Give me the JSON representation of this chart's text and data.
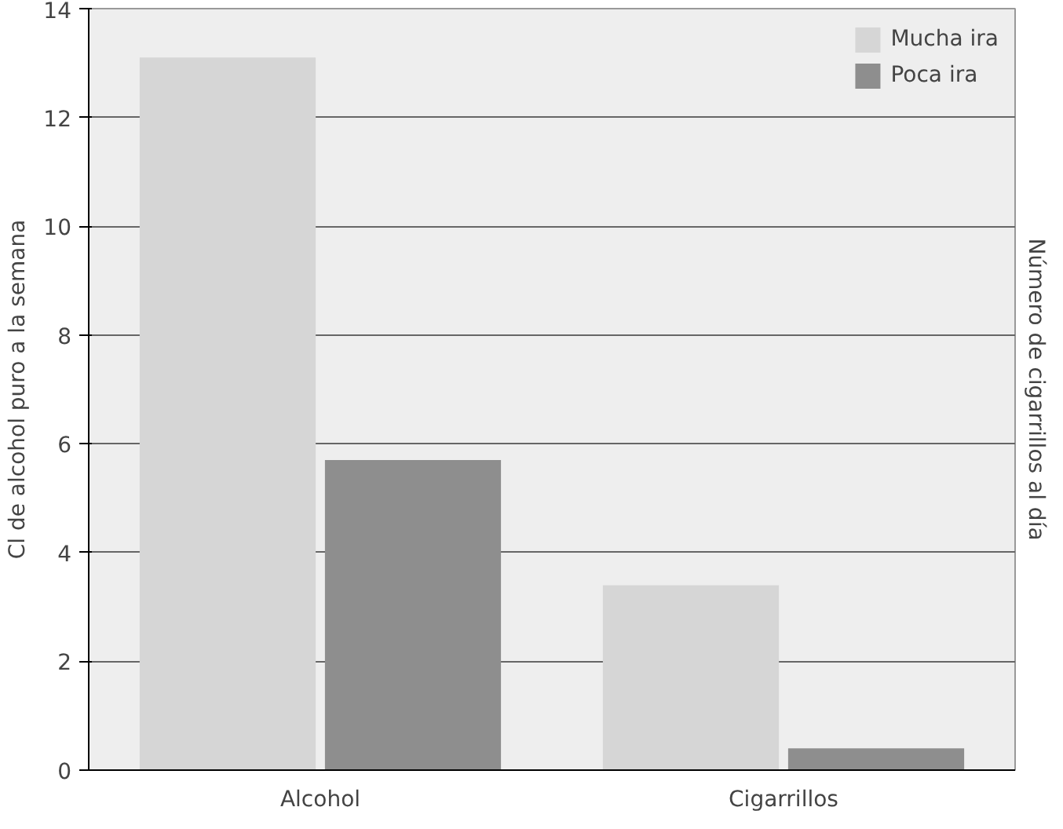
{
  "chart_data": {
    "type": "bar",
    "categories": [
      "Alcohol",
      "Cigarrillos"
    ],
    "ylabel": "Cl de alcohol puro a la semana",
    "y2label": "Número de cigarrillos al día",
    "series": [
      {
        "name": "Mucha ira",
        "color": "#d6d6d6",
        "values": [
          13.1,
          3.4
        ]
      },
      {
        "name": "Poca ira",
        "color": "#8e8e8e",
        "values": [
          5.7,
          0.4
        ]
      }
    ],
    "ylim": [
      0,
      14
    ],
    "yticks": [
      0,
      2,
      4,
      6,
      8,
      10,
      12,
      14
    ],
    "grid": "y",
    "legend": "top right"
  }
}
